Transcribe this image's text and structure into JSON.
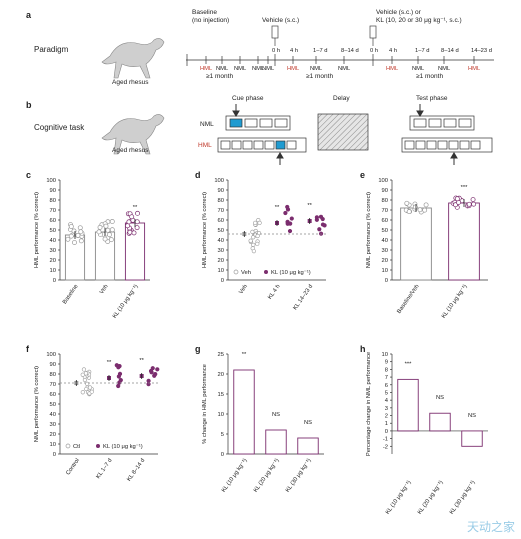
{
  "labels": {
    "a": "a",
    "b": "b",
    "c": "c",
    "d": "d",
    "e": "e",
    "f": "f",
    "g": "g",
    "h": "h"
  },
  "paradigm": {
    "row_label": "Paradigm",
    "animal": "Aged rhesus",
    "baseline_title": "Baseline",
    "baseline_sub": "(no injection)",
    "vehicle_sc": "Vehicle (s.c.)",
    "vehicle_or": "Vehicle (s.c.) or",
    "kl_doses": "KL (10, 20 or 30 μg kg⁻¹, s.c.)",
    "ticks1": [
      "HML",
      "NML",
      "NML",
      "NML",
      "NML"
    ],
    "ticks2": [
      "0 h",
      "4 h",
      "1–7 d",
      "8–14 d"
    ],
    "ticks2b": [
      "HML",
      "NML",
      "NML"
    ],
    "ticks3": [
      "0 h",
      "4 h",
      "1–7 d",
      "8–14 d",
      "14–23 d"
    ],
    "ticks3b": [
      "HML",
      "NML",
      "NML",
      "HML"
    ],
    "month": "≥1 month"
  },
  "cognitive": {
    "row_label": "Cognitive task",
    "animal": "Aged rhesus",
    "nml": "NML",
    "hml": "HML",
    "cue": "Cue phase",
    "delay": "Delay",
    "test": "Test phase"
  },
  "colors": {
    "purple": "#7b2d6e",
    "gray": "#9a9a9a",
    "cyan": "#1f9bd1",
    "red": "#c0392b"
  },
  "chart_data": [
    {
      "panel": "c",
      "type": "bar",
      "ylabel": "HML performance (% correct)",
      "ylim": [
        0,
        100
      ],
      "categories": [
        "Baseline",
        "Veh",
        "KL (10 μg kg⁻¹)"
      ],
      "values": [
        45,
        48,
        57
      ],
      "sig": [
        "",
        "",
        "**"
      ]
    },
    {
      "panel": "d",
      "type": "scatter",
      "ylabel": "HML performance (% correct)",
      "ylim": [
        0,
        100
      ],
      "categories": [
        "Veh",
        "KL 4 h",
        "KL 14–23 d"
      ],
      "values": [
        46,
        57,
        59
      ],
      "sig": [
        "",
        "**",
        "**"
      ],
      "legend": [
        "Veh",
        "KL (10 μg kg⁻¹)"
      ]
    },
    {
      "panel": "e",
      "type": "bar",
      "ylabel": "NML performance (% correct)",
      "ylim": [
        0,
        100
      ],
      "categories": [
        "Baseline/Veh",
        "KL (10 μg kg⁻¹)"
      ],
      "values": [
        72,
        77
      ],
      "sig": [
        "",
        "***"
      ]
    },
    {
      "panel": "f",
      "type": "scatter",
      "ylabel": "NML performance (% correct)",
      "ylim": [
        0,
        100
      ],
      "categories": [
        "Control",
        "KL 1–7 d",
        "KL 8–14 d"
      ],
      "values": [
        71,
        76,
        78
      ],
      "sig": [
        "",
        "**",
        "**"
      ],
      "legend": [
        "Ctl",
        "KL (10 μg kg⁻¹)"
      ]
    },
    {
      "panel": "g",
      "type": "bar",
      "ylabel": "% change in HML performance",
      "ylim": [
        0,
        25
      ],
      "categories": [
        "KL (10 μg kg⁻¹)",
        "KL (20 μg kg⁻¹)",
        "KL (30 μg kg⁻¹)"
      ],
      "values": [
        21,
        6,
        4
      ],
      "sig": [
        "**",
        "NS",
        "NS"
      ]
    },
    {
      "panel": "h",
      "type": "bar",
      "ylabel": "Percentage change in NML performance",
      "ylim": [
        -3,
        10
      ],
      "categories": [
        "KL (10 μg kg⁻¹)",
        "KL (20 μg kg⁻¹)",
        "KL (30 μg kg⁻¹)"
      ],
      "values": [
        6.7,
        2.3,
        -2
      ],
      "sig": [
        "***",
        "NS",
        "NS"
      ]
    }
  ],
  "ticks": {
    "c": [
      "0",
      "10",
      "20",
      "30",
      "40",
      "50",
      "60",
      "70",
      "80",
      "90",
      "100"
    ],
    "g": [
      "0",
      "5",
      "10",
      "15",
      "20",
      "25"
    ],
    "h": [
      "-2",
      "-1",
      "0",
      "1",
      "2",
      "3",
      "4",
      "5",
      "6",
      "7",
      "8",
      "9",
      "10"
    ]
  },
  "watermark": "天动之家"
}
